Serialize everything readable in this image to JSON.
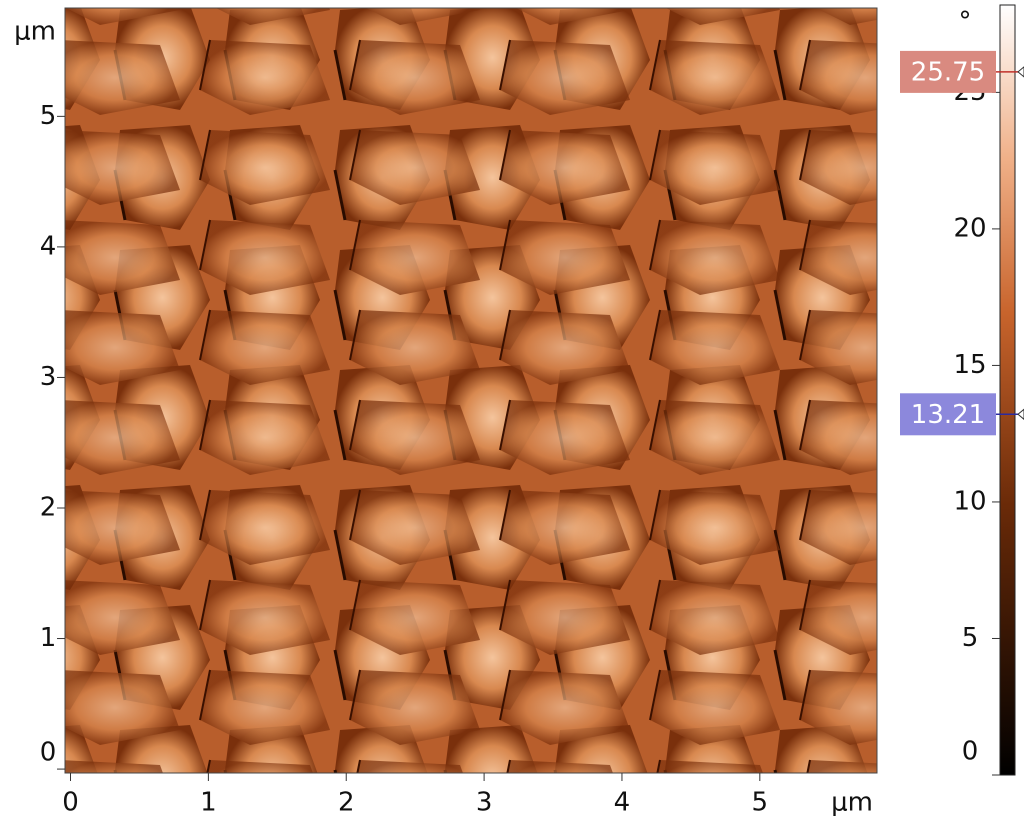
{
  "chart_data": {
    "type": "image",
    "x_unit": "μm",
    "y_unit": "μm",
    "xlim": [
      -0.04,
      5.85
    ],
    "ylim": [
      -0.03,
      5.83
    ],
    "xticks": [
      0,
      1,
      2,
      3,
      4,
      5
    ],
    "yticks": [
      0,
      1,
      2,
      3,
      4,
      5
    ],
    "colorbar": {
      "unit": "°",
      "lim": [
        0,
        28.2
      ],
      "ticks": [
        0,
        5,
        10,
        15,
        20,
        25
      ],
      "markers": [
        {
          "value": 25.75,
          "color": "#d98a80",
          "line": "#c0302a"
        },
        {
          "value": 13.21,
          "color": "#8c88dc",
          "line": "#2a2aa0"
        }
      ]
    }
  }
}
